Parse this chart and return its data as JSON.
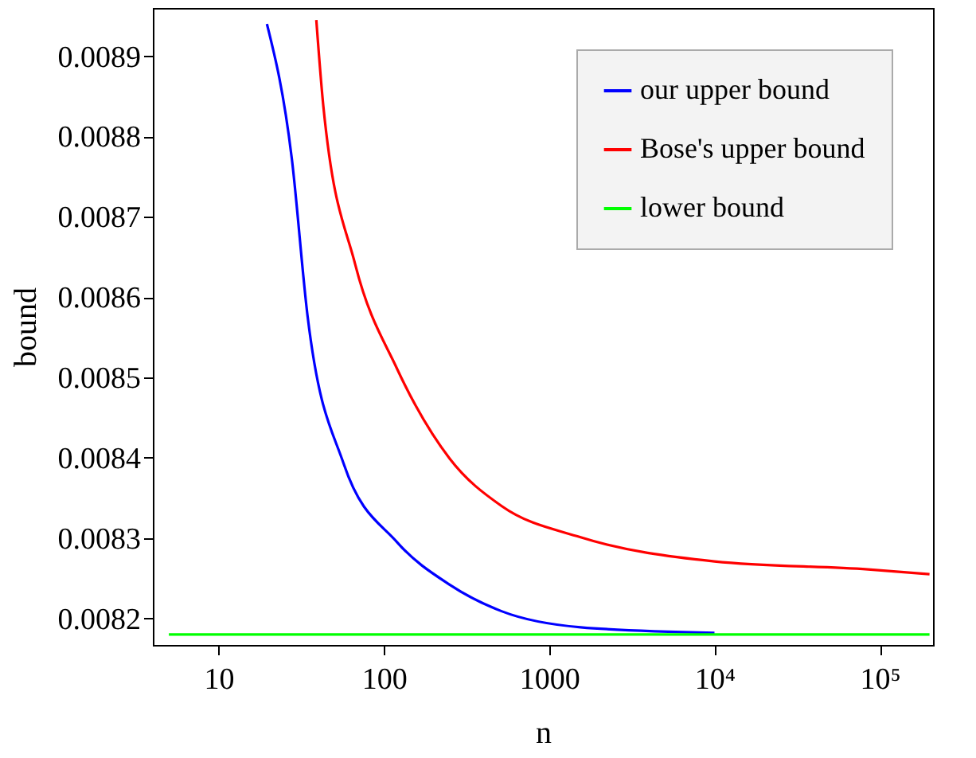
{
  "chart_data": {
    "type": "line",
    "xlabel": "n",
    "ylabel": "bound",
    "log": "x",
    "xlim": [
      4,
      210000
    ],
    "xticks": [
      10,
      100,
      1000,
      {
        "value": 10000,
        "label": "10⁴"
      },
      {
        "value": 100000,
        "label": "10⁵"
      }
    ],
    "ylim": [
      0.008167,
      0.00896
    ],
    "yticks": [
      0.0082,
      0.0083,
      0.0084,
      0.0085,
      0.0086,
      0.0087,
      0.0088,
      0.0089
    ],
    "grid": false,
    "legend": "top right",
    "marker": "none",
    "line_style": "solid",
    "series": [
      {
        "name": "our upper bound",
        "color": "#0000ff",
        "x": [
          19.6,
          27.7,
          34.5,
          57,
          120,
          250,
          515,
          1550,
          10000
        ],
        "values": [
          0.00894,
          0.008773,
          0.008577,
          0.008393,
          0.008295,
          0.008242,
          0.008209,
          0.008189,
          0.008182
        ]
      },
      {
        "name": "Bose's upper bound",
        "color": "#ff0000",
        "x": [
          39,
          43,
          67,
          120,
          250,
          515,
          1550,
          10000,
          85000,
          200000
        ],
        "values": [
          0.008945,
          0.008838,
          0.008641,
          0.008511,
          0.008399,
          0.00834,
          0.008301,
          0.008271,
          0.008261,
          0.008255
        ]
      },
      {
        "name": "lower bound",
        "color": "#00ff00",
        "x": [
          5,
          200000
        ],
        "values": [
          0.00818,
          0.00818
        ]
      }
    ]
  }
}
